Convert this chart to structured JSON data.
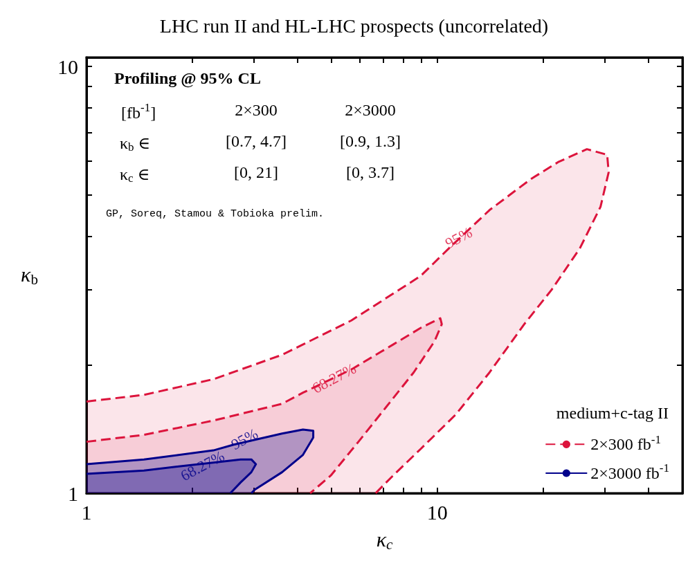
{
  "chart_data": {
    "type": "area",
    "title": "LHC run II and HL-LHC prospects (uncorrelated)",
    "xlabel": "κ$_{c}$",
    "ylabel": "κ$_{b}$",
    "legend_title": "medium+c-tag II",
    "legend": "bottom right",
    "grid": false,
    "log": "xy",
    "marker": "none",
    "xlim": [
      1,
      50
    ],
    "ylim": [
      1,
      10.5
    ],
    "xticks": [
      1,
      {
        "value": 2,
        "label": null
      },
      {
        "value": 3,
        "label": null
      },
      {
        "value": 4,
        "label": null
      },
      {
        "value": 5,
        "label": null
      },
      {
        "value": 6,
        "label": null
      },
      {
        "value": 7,
        "label": null
      },
      {
        "value": 8,
        "label": null
      },
      {
        "value": 9,
        "label": null
      },
      10,
      {
        "value": 20,
        "label": null
      },
      {
        "value": 30,
        "label": null
      },
      {
        "value": 40,
        "label": null
      },
      {
        "value": 50,
        "label": null
      }
    ],
    "yticks": [
      1,
      {
        "value": 2,
        "label": null
      },
      {
        "value": 3,
        "label": null
      },
      {
        "value": 4,
        "label": null
      },
      {
        "value": 5,
        "label": null
      },
      {
        "value": 6,
        "label": null
      },
      {
        "value": 7,
        "label": null
      },
      {
        "value": 8,
        "label": null
      },
      {
        "value": 9,
        "label": null
      },
      10
    ],
    "series": [
      {
        "name": "2×300 fb$^{-1}$",
        "color": "#dc143c",
        "line_style": "dashed",
        "x": [
          1,
          1.458,
          2.3,
          3.61,
          5.69,
          8.97,
          10.8,
          14.1,
          18.5,
          22.2,
          26.7,
          30.5,
          30.8,
          29.2,
          25.5,
          21.2,
          17.7,
          14.1,
          11.3,
          8.97,
          7.48,
          6.67
        ],
        "values": [
          1.64,
          1.7,
          1.85,
          2.11,
          2.54,
          3.23,
          3.75,
          4.61,
          5.45,
          5.98,
          6.4,
          6.21,
          5.65,
          4.69,
          3.75,
          3.0,
          2.49,
          1.92,
          1.53,
          1.27,
          1.1,
          1
        ]
      },
      {
        "color": "#dc143c",
        "line_style": "dashed",
        "x": [
          1,
          1.458,
          2.3,
          3.61,
          4.14,
          5.69,
          7.48,
          8.97,
          10.2,
          10.3,
          9.82,
          8.57,
          7.14,
          5.96,
          4.97,
          4.34
        ],
        "values": [
          1.32,
          1.37,
          1.48,
          1.62,
          1.72,
          1.95,
          2.23,
          2.44,
          2.57,
          2.49,
          2.27,
          1.92,
          1.59,
          1.32,
          1.1,
          1
        ]
      },
      {
        "name": "2×3000 fb$^{-1}$",
        "color": "#00008b",
        "line_style": "solid",
        "x": [
          1,
          1.458,
          2.3,
          2.63,
          3.61,
          4.14,
          4.43,
          4.43,
          4.14,
          3.61,
          3.02,
          2.95
        ],
        "values": [
          1.17,
          1.2,
          1.26,
          1.3,
          1.38,
          1.41,
          1.4,
          1.35,
          1.23,
          1.12,
          1.02,
          1
        ]
      },
      {
        "color": "#00008b",
        "line_style": "solid",
        "x": [
          1,
          1.458,
          1.91,
          2.3,
          2.75,
          2.95,
          3.04,
          2.95,
          2.75,
          2.57
        ],
        "values": [
          1.11,
          1.13,
          1.16,
          1.18,
          1.2,
          1.2,
          1.17,
          1.12,
          1.06,
          1
        ]
      }
    ],
    "annotations": [
      {
        "text": "95%",
        "x": 11.5,
        "y": 3.97
      },
      {
        "text": "68.27%",
        "x": 5.08,
        "y": 1.86
      },
      {
        "text": "95%",
        "x": 2.82,
        "y": 1.34
      },
      {
        "text": "68.27%",
        "x": 2.14,
        "y": 1.16
      },
      "Profiling @ 95% CL",
      "[fb$^{-1}$]",
      "2×300",
      "2×3000",
      "κ$_{b}$ ∈",
      "[0.7, 4.7]",
      "[0.9, 1.3]",
      "κ$_{c}$ ∈",
      "[0, 21]",
      "[0, 3.7]",
      "GP, Soreq, Stamou & Tobioka prelim."
    ]
  }
}
